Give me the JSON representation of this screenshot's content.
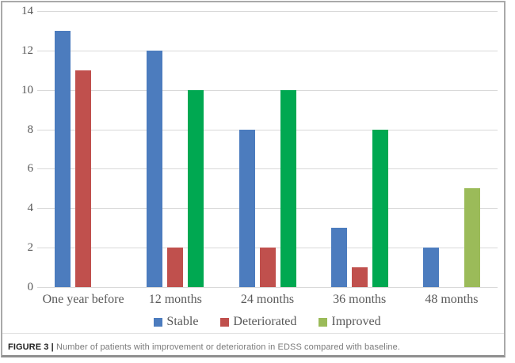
{
  "figure": {
    "caption_label": "FIGURE 3 |",
    "caption_text": " Number of patients with improvement or deterioration in EDSS compared with baseline."
  },
  "colors": {
    "stable_blue": "#4C7CBE",
    "deteriorated_red": "#C0504D",
    "improved_green": "#00A851",
    "improved_olive_48_months": "#9BBB59",
    "gridline": "#D9D9D9",
    "axis_text": "#595959",
    "frame_border": "#A9A9A9",
    "caption_label_text": "#1F1F1F",
    "caption_body_text": "#7A7A7A"
  },
  "chart_data": {
    "type": "bar",
    "title": "",
    "xlabel": "",
    "ylabel": "",
    "categories": [
      "One year before",
      "12 months",
      "24 months",
      "36 months",
      "48 months"
    ],
    "series": [
      {
        "name": "Stable",
        "color": "#4C7CBE",
        "values": [
          13,
          12,
          8,
          3,
          2
        ]
      },
      {
        "name": "Deteriorated",
        "color": "#C0504D",
        "values": [
          11,
          2,
          2,
          1,
          0
        ]
      },
      {
        "name": "Improved",
        "color": "#00A851",
        "values": [
          0,
          10,
          10,
          8,
          5
        ],
        "point_colors": [
          null,
          "#00A851",
          "#00A851",
          "#00A851",
          "#9BBB59"
        ]
      }
    ],
    "ylim": [
      0,
      14
    ],
    "yticks": [
      0,
      2,
      4,
      6,
      8,
      10,
      12,
      14
    ],
    "grid": "horizontal",
    "legend_position": "bottom",
    "legend": [
      {
        "label": "Stable",
        "color": "#4C7CBE"
      },
      {
        "label": "Deteriorated",
        "color": "#C0504D"
      },
      {
        "label": "Improved",
        "color": "#9BBB59"
      }
    ]
  }
}
